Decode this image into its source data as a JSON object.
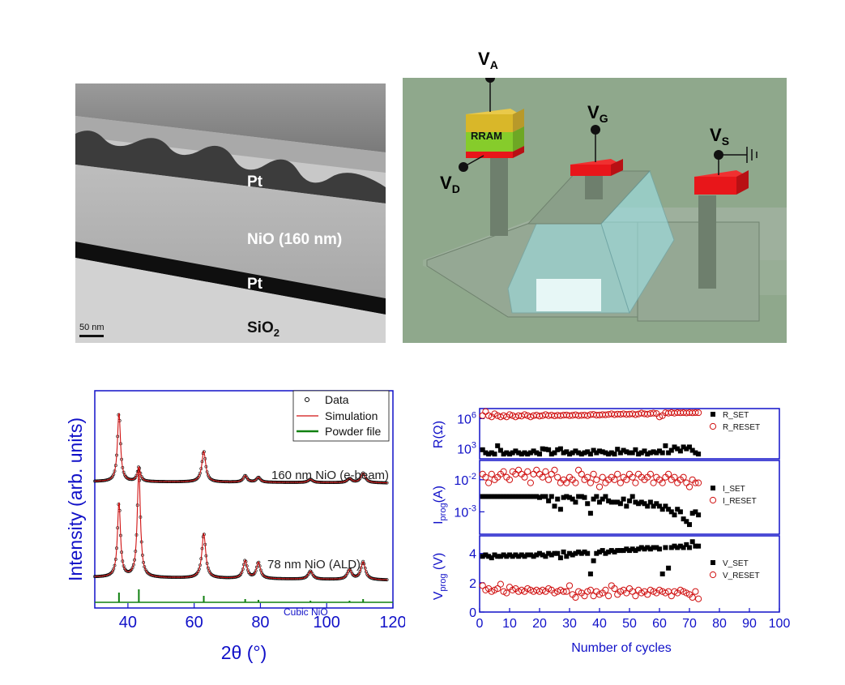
{
  "tem": {
    "labels": [
      "Pt",
      "NiO (160 nm)",
      "Pt",
      "SiO",
      "2"
    ],
    "scale_bar": "50 nm"
  },
  "device": {
    "terminals": {
      "va": {
        "main": "V",
        "sub": "A"
      },
      "vg": {
        "main": "V",
        "sub": "G"
      },
      "vs": {
        "main": "V",
        "sub": "S"
      },
      "vd": {
        "main": "V",
        "sub": "D"
      }
    },
    "rram_label": "RRAM",
    "colors": {
      "background": "#8fa88c",
      "pad": "#e8161a",
      "rram_green": "#86cc2b",
      "rram_yellow": "#d9b729",
      "gate_oxide": "#9fe3e8"
    }
  },
  "chart_data": [
    {
      "type": "line",
      "ylabel": "Intensity (arb. units)",
      "xlabel_main": "2",
      "xlabel_symbol": "θ",
      "xlabel_unit": " (°)",
      "xlim": [
        30,
        120
      ],
      "xticks": [
        40,
        60,
        80,
        100,
        120
      ],
      "y_tick_labels": false,
      "legend": {
        "placement": "top-right",
        "entries": [
          "Data",
          "Simulation",
          "Powder file"
        ]
      },
      "annotations": [
        "160 nm NiO (e-beam)",
        "78 nm NiO (ALD)",
        "Cubic NiO"
      ],
      "peaks_2theta": [
        37.3,
        43.3,
        62.9,
        75.4,
        79.4,
        95.1,
        106.9,
        111.0
      ],
      "powder_file_peaks": [
        37.3,
        43.3,
        62.9,
        75.4,
        79.4,
        95.1,
        106.9,
        111.0
      ],
      "colors": {
        "axis": "#1010c8",
        "simulation": "#d01010",
        "powder": "#108010",
        "data": "#000000"
      }
    },
    {
      "type": "scatter",
      "xlabel": "Number of cycles",
      "xlim": [
        0,
        100
      ],
      "xticks": [
        0,
        10,
        20,
        30,
        40,
        50,
        60,
        70,
        80,
        90,
        100
      ],
      "panels": [
        {
          "ylabel_main": "R(Ω)",
          "scale": "log",
          "ylim": [
            100,
            10000000
          ],
          "yticks": [
            {
              "base": "10",
              "exp": "3",
              "value": 1000
            },
            {
              "base": "10",
              "exp": "6",
              "value": 1000000
            }
          ],
          "series": [
            {
              "name": "R_SET",
              "marker": "filled-square",
              "values": [
                800,
                400,
                300,
                400,
                300,
                2000,
                700,
                300,
                400,
                300,
                400,
                600,
                400,
                300,
                400,
                300,
                400,
                600,
                400,
                300,
                1000,
                900,
                800,
                300,
                400,
                800,
                1000,
                400,
                500,
                300,
                400,
                600,
                400,
                300,
                400,
                500,
                300,
                700,
                400,
                600,
                500,
                400,
                300,
                400,
                300,
                900,
                400,
                700,
                500,
                400,
                400,
                800,
                300,
                400,
                600,
                300,
                400,
                500,
                400,
                600,
                400,
                2000,
                400,
                700,
                1500,
                1000,
                600,
                1500,
                1000,
                1500,
                700,
                400,
                300
              ]
            },
            {
              "name": "R_RESET",
              "marker": "open-circle",
              "values": [
                2000000,
                5000000,
                2000000,
                1500000,
                3000000,
                2000000,
                1500000,
                2000000,
                1500000,
                2500000,
                2000000,
                1500000,
                2000000,
                1800000,
                2500000,
                2000000,
                1500000,
                2000000,
                2200000,
                1800000,
                2000000,
                2500000,
                2000000,
                2200000,
                1900000,
                2100000,
                2000000,
                2200000,
                2300000,
                2000000,
                2100000,
                2400000,
                2000000,
                2100000,
                2200000,
                2000000,
                2500000,
                2600000,
                2200000,
                2300000,
                2500000,
                2400000,
                2600000,
                3000000,
                2500000,
                2800000,
                2700000,
                3000000,
                2600000,
                2800000,
                3000000,
                2500000,
                2900000,
                3500000,
                3000000,
                2800000,
                3200000,
                3500000,
                3200000,
                1500000,
                2000000,
                3800000,
                3500000,
                4000000,
                3500000,
                4000000,
                3800000,
                4000000,
                3700000,
                4000000,
                3800000,
                4000000,
                3900000
              ]
            }
          ]
        },
        {
          "ylabel_main": "I",
          "ylabel_sub": "prog",
          "ylabel_unit": "(A)",
          "scale": "log",
          "ylim": [
            0.0002,
            0.04
          ],
          "yticks": [
            {
              "base": "10",
              "exp": "-3",
              "value": 0.001
            },
            {
              "base": "10",
              "exp": "-2",
              "value": 0.01
            }
          ],
          "series": [
            {
              "name": "I_SET",
              "marker": "filled-square",
              "values": [
                0.003,
                0.003,
                0.003,
                0.003,
                0.003,
                0.003,
                0.003,
                0.003,
                0.003,
                0.003,
                0.003,
                0.003,
                0.003,
                0.003,
                0.003,
                0.003,
                0.003,
                0.003,
                0.003,
                0.0028,
                0.003,
                0.003,
                0.0022,
                0.003,
                0.0015,
                0.0025,
                0.0012,
                0.0028,
                0.003,
                0.0028,
                0.0025,
                0.002,
                0.003,
                0.003,
                0.0028,
                0.0018,
                0.0009,
                0.0025,
                0.003,
                0.002,
                0.0025,
                0.003,
                0.0022,
                0.002,
                0.002,
                0.002,
                0.0018,
                0.0025,
                0.0015,
                0.0022,
                0.003,
                0.002,
                0.0018,
                0.002,
                0.0018,
                0.0015,
                0.002,
                0.0015,
                0.0018,
                0.0015,
                0.0012,
                0.0015,
                0.0012,
                0.001,
                0.0008,
                0.0012,
                0.001,
                0.0006,
                0.0005,
                0.0004,
                0.0009,
                0.001,
                0.0008
              ]
            },
            {
              "name": "I_RESET",
              "marker": "open-circle",
              "values": [
                0.015,
                0.012,
                0.008,
                0.015,
                0.01,
                0.012,
                0.015,
                0.018,
                0.012,
                0.01,
                0.018,
                0.015,
                0.02,
                0.015,
                0.012,
                0.018,
                0.008,
                0.015,
                0.02,
                0.015,
                0.012,
                0.018,
                0.01,
                0.015,
                0.02,
                0.012,
                0.008,
                0.01,
                0.008,
                0.012,
                0.01,
                0.008,
                0.02,
                0.015,
                0.01,
                0.012,
                0.008,
                0.015,
                0.01,
                0.006,
                0.012,
                0.008,
                0.01,
                0.012,
                0.01,
                0.015,
                0.008,
                0.012,
                0.01,
                0.015,
                0.012,
                0.008,
                0.015,
                0.012,
                0.01,
                0.012,
                0.015,
                0.008,
                0.012,
                0.01,
                0.008,
                0.012,
                0.015,
                0.01,
                0.012,
                0.008,
                0.01,
                0.012,
                0.008,
                0.006,
                0.01,
                0.008,
                0.008
              ]
            }
          ]
        },
        {
          "ylabel_main": "V",
          "ylabel_sub": "prog",
          "ylabel_unit": " (V)",
          "scale": "linear",
          "ylim": [
            0,
            5.2
          ],
          "yticks": [
            {
              "label": "0",
              "value": 0
            },
            {
              "label": "2",
              "value": 2
            },
            {
              "label": "4",
              "value": 4
            }
          ],
          "series": [
            {
              "name": "V_SET",
              "marker": "filled-square",
              "values": [
                3.8,
                3.9,
                3.8,
                3.7,
                3.9,
                3.8,
                3.8,
                3.9,
                3.8,
                3.9,
                3.8,
                3.9,
                3.8,
                3.9,
                3.8,
                3.9,
                3.9,
                3.8,
                3.9,
                4.0,
                3.9,
                3.8,
                4.0,
                3.9,
                4.0,
                4.0,
                3.7,
                4.1,
                3.8,
                4.0,
                3.9,
                4.0,
                4.1,
                4.0,
                4.1,
                4.0,
                2.6,
                3.5,
                4.0,
                4.1,
                4.2,
                4.0,
                4.1,
                4.2,
                4.1,
                4.2,
                4.2,
                4.2,
                4.3,
                4.2,
                4.3,
                4.2,
                4.3,
                4.4,
                4.3,
                4.4,
                4.3,
                4.4,
                4.4,
                4.3,
                2.6,
                4.4,
                3.0,
                4.4,
                4.5,
                4.4,
                4.5,
                4.4,
                4.6,
                4.4,
                4.8,
                4.5,
                4.5
              ]
            },
            {
              "name": "V_RESET",
              "marker": "open-circle",
              "values": [
                1.8,
                1.5,
                1.6,
                1.4,
                1.5,
                1.6,
                1.9,
                1.4,
                1.3,
                1.7,
                1.5,
                1.6,
                1.4,
                1.5,
                1.4,
                1.6,
                1.5,
                1.4,
                1.5,
                1.4,
                1.5,
                1.4,
                1.6,
                1.5,
                1.3,
                1.4,
                1.5,
                1.4,
                1.4,
                1.8,
                1.2,
                1.0,
                1.4,
                1.3,
                1.1,
                1.4,
                1.5,
                1.1,
                1.4,
                1.2,
                1.3,
                1.5,
                1.1,
                1.8,
                1.6,
                1.2,
                1.4,
                1.5,
                1.3,
                1.6,
                1.4,
                1.1,
                1.5,
                1.3,
                1.4,
                1.2,
                1.5,
                1.4,
                1.3,
                1.5,
                1.4,
                1.3,
                1.4,
                1.1,
                1.4,
                1.3,
                1.5,
                1.4,
                1.3,
                1.2,
                1.0,
                1.4,
                0.9
              ]
            }
          ]
        }
      ],
      "colors": {
        "axis": "#1010c8",
        "set": "#000000",
        "reset": "#d01010"
      }
    }
  ]
}
